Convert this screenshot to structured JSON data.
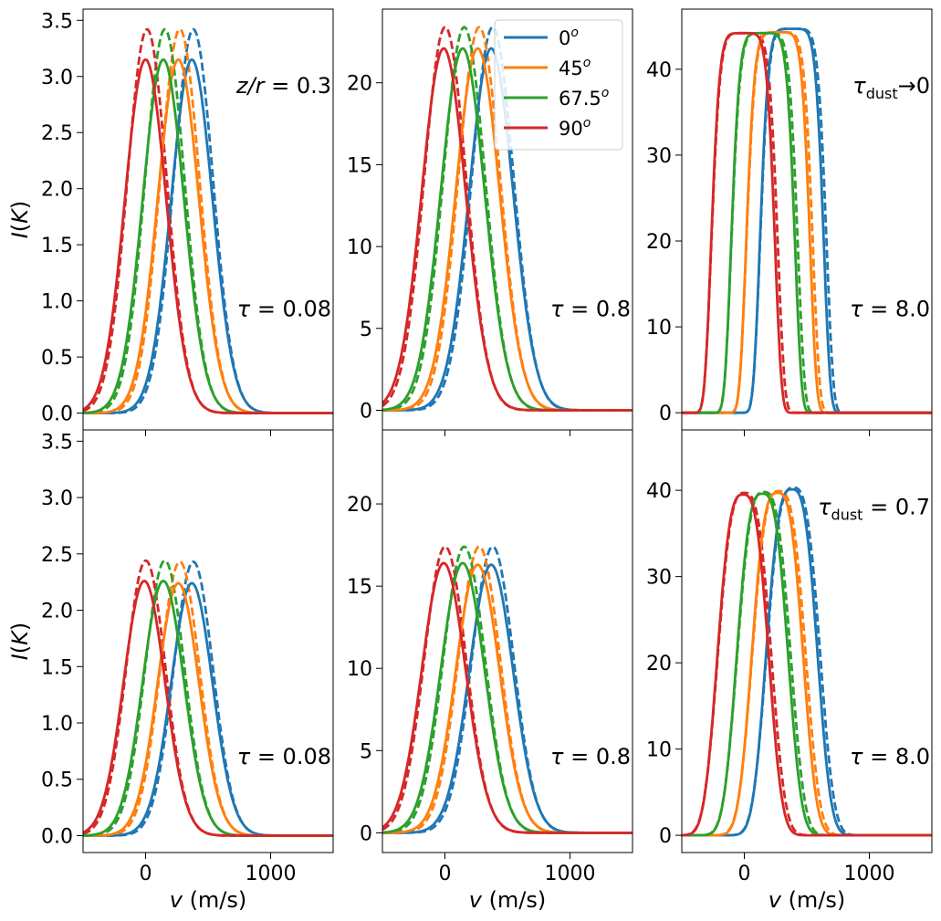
{
  "chart_data": {
    "type": "line",
    "layout": "2x3 grid, rows share y-range per column, x shared",
    "xlabel": "v (m/s)",
    "ylabel": "I(K)",
    "x_ticks": [
      0,
      1000
    ],
    "xlim": [
      -500,
      1500
    ],
    "line_styles": {
      "solid": "solid lines",
      "dashed": "dashed lines"
    },
    "legend": {
      "location": "top-right of panel 2",
      "entries": [
        {
          "label": "0",
          "sup": "o",
          "color": "#1f77b4"
        },
        {
          "label": "45",
          "sup": "o",
          "color": "#ff7f0e"
        },
        {
          "label": "67.5",
          "sup": "o",
          "color": "#2ca02c"
        },
        {
          "label": "90",
          "sup": "o",
          "color": "#d62728"
        }
      ]
    },
    "panels": [
      {
        "row": 0,
        "col": 0,
        "ylim": [
          -0.15,
          3.6
        ],
        "y_ticks": [
          "0.0",
          "0.5",
          "1.0",
          "1.5",
          "2.0",
          "2.5",
          "3.0",
          "3.5"
        ],
        "y_tick_values": [
          0,
          0.5,
          1.0,
          1.5,
          2.0,
          2.5,
          3.0,
          3.5
        ],
        "show_ylabel": true,
        "show_xticks": false,
        "annotations": [
          {
            "text": "z/r = 0.3",
            "pos": "right-upper"
          },
          {
            "text": "τ = 0.08",
            "pos": "right-middle"
          }
        ],
        "profile": "gaussian",
        "series": [
          {
            "angle": "0",
            "center": 370,
            "solid_peak": 3.15,
            "dashed_peak": 3.42,
            "sigma": 165
          },
          {
            "angle": "45",
            "center": 262,
            "solid_peak": 3.15,
            "dashed_peak": 3.42,
            "sigma": 165
          },
          {
            "angle": "67.5",
            "center": 142,
            "solid_peak": 3.15,
            "dashed_peak": 3.42,
            "sigma": 165
          },
          {
            "angle": "90",
            "center": 0,
            "solid_peak": 3.15,
            "dashed_peak": 3.42,
            "sigma": 165
          }
        ]
      },
      {
        "row": 0,
        "col": 1,
        "ylim": [
          -1.2,
          24.5
        ],
        "y_ticks": [
          "0",
          "5",
          "10",
          "15",
          "20"
        ],
        "y_tick_values": [
          0,
          5,
          10,
          15,
          20
        ],
        "show_ylabel": false,
        "show_xticks": false,
        "annotations": [
          {
            "text": "τ = 0.8",
            "pos": "right-middle"
          }
        ],
        "profile": "gaussian",
        "series": [
          {
            "angle": "0",
            "center": 370,
            "solid_peak": 22.1,
            "dashed_peak": 23.4,
            "sigma": 175
          },
          {
            "angle": "45",
            "center": 262,
            "solid_peak": 22.1,
            "dashed_peak": 23.4,
            "sigma": 175
          },
          {
            "angle": "67.5",
            "center": 142,
            "solid_peak": 22.1,
            "dashed_peak": 23.4,
            "sigma": 175
          },
          {
            "angle": "90",
            "center": -10,
            "solid_peak": 22.1,
            "dashed_peak": 23.4,
            "sigma": 175
          }
        ]
      },
      {
        "row": 0,
        "col": 2,
        "ylim": [
          -2.0,
          47.0
        ],
        "y_ticks": [
          "0",
          "10",
          "20",
          "30",
          "40"
        ],
        "y_tick_values": [
          0,
          10,
          20,
          30,
          40
        ],
        "show_ylabel": false,
        "show_xticks": false,
        "annotations": [
          {
            "text": "τ",
            "sub": "dust",
            "tail": "→0",
            "pos": "right-upper"
          },
          {
            "text": "τ = 8.0",
            "pos": "right-middle"
          }
        ],
        "profile": "flat-top",
        "series": [
          {
            "angle": "0",
            "center": 380,
            "solid_peak": 44.7,
            "dashed_peak": 44.7,
            "halfwidth": 260
          },
          {
            "angle": "45",
            "center": 270,
            "solid_peak": 44.3,
            "dashed_peak": 44.3,
            "halfwidth": 260
          },
          {
            "angle": "67.5",
            "center": 150,
            "solid_peak": 44.2,
            "dashed_peak": 44.2,
            "halfwidth": 260
          },
          {
            "angle": "90",
            "center": -10,
            "solid_peak": 44.2,
            "dashed_peak": 44.2,
            "halfwidth": 260
          }
        ]
      },
      {
        "row": 1,
        "col": 0,
        "ylim": [
          -0.15,
          3.6
        ],
        "y_ticks": [
          "0.0",
          "0.5",
          "1.0",
          "1.5",
          "2.0",
          "2.5",
          "3.0",
          "3.5"
        ],
        "y_tick_values": [
          0,
          0.5,
          1.0,
          1.5,
          2.0,
          2.5,
          3.0,
          3.5
        ],
        "show_ylabel": true,
        "show_xticks": true,
        "annotations": [
          {
            "text": "τ = 0.08",
            "pos": "right-lower"
          }
        ],
        "profile": "gaussian",
        "series": [
          {
            "angle": "0",
            "center": 370,
            "solid_peak": 2.24,
            "dashed_peak": 2.43,
            "sigma": 165
          },
          {
            "angle": "45",
            "center": 262,
            "solid_peak": 2.24,
            "dashed_peak": 2.43,
            "sigma": 165
          },
          {
            "angle": "67.5",
            "center": 142,
            "solid_peak": 2.26,
            "dashed_peak": 2.44,
            "sigma": 165
          },
          {
            "angle": "90",
            "center": -10,
            "solid_peak": 2.26,
            "dashed_peak": 2.44,
            "sigma": 165
          }
        ]
      },
      {
        "row": 1,
        "col": 1,
        "ylim": [
          -1.2,
          24.5
        ],
        "y_ticks": [
          "0",
          "5",
          "10",
          "15",
          "20"
        ],
        "y_tick_values": [
          0,
          5,
          10,
          15,
          20
        ],
        "show_ylabel": false,
        "show_xticks": true,
        "annotations": [
          {
            "text": "τ = 0.8",
            "pos": "right-lower"
          }
        ],
        "profile": "gaussian",
        "series": [
          {
            "angle": "0",
            "center": 370,
            "solid_peak": 16.3,
            "dashed_peak": 17.4,
            "sigma": 175
          },
          {
            "angle": "45",
            "center": 262,
            "solid_peak": 16.3,
            "dashed_peak": 17.4,
            "sigma": 175
          },
          {
            "angle": "67.5",
            "center": 142,
            "solid_peak": 16.4,
            "dashed_peak": 17.4,
            "sigma": 175
          },
          {
            "angle": "90",
            "center": -10,
            "solid_peak": 16.4,
            "dashed_peak": 17.4,
            "sigma": 175
          }
        ]
      },
      {
        "row": 1,
        "col": 2,
        "ylim": [
          -2.0,
          47.0
        ],
        "y_ticks": [
          "0",
          "10",
          "20",
          "30",
          "40"
        ],
        "y_tick_values": [
          0,
          10,
          20,
          30,
          40
        ],
        "show_ylabel": false,
        "show_xticks": true,
        "annotations": [
          {
            "text": "τ",
            "sub": "dust",
            "tail": " = 0.7",
            "pos": "right-upper"
          },
          {
            "text": "τ = 8.0",
            "pos": "right-lower"
          }
        ],
        "profile": "rounded-top",
        "series": [
          {
            "angle": "0",
            "center": 380,
            "solid_peak": 40.1,
            "dashed_peak": 40.3,
            "halfwidth": 230
          },
          {
            "angle": "45",
            "center": 265,
            "solid_peak": 39.7,
            "dashed_peak": 39.9,
            "halfwidth": 230
          },
          {
            "angle": "67.5",
            "center": 145,
            "solid_peak": 39.6,
            "dashed_peak": 39.8,
            "halfwidth": 230
          },
          {
            "angle": "90",
            "center": -10,
            "solid_peak": 39.5,
            "dashed_peak": 39.7,
            "halfwidth": 230
          }
        ]
      }
    ]
  }
}
